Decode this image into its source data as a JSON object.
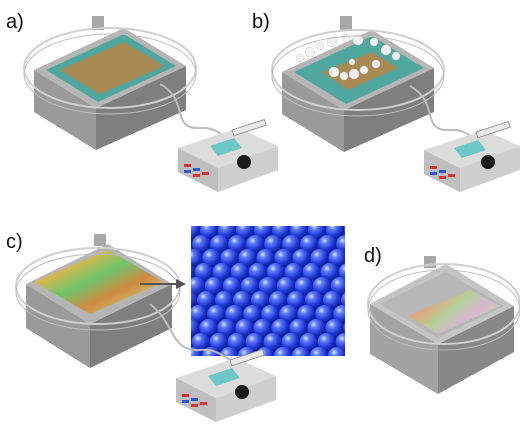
{
  "panels": [
    {
      "id": "a",
      "label": "a)"
    },
    {
      "id": "b",
      "label": "b)"
    },
    {
      "id": "c",
      "label": "c)"
    },
    {
      "id": "d",
      "label": "d)"
    }
  ],
  "colors": {
    "trough_top": "#b4b4b4",
    "trough_left": "#9a9a9a",
    "trough_right": "#7f7f7f",
    "water": "#4fa7a0",
    "film": "#a88a52",
    "rail": "#d0d0d0",
    "pump_body": "#d9d9d9",
    "pump_screen": "#6ec7c7",
    "button_red": "#e03030",
    "button_blue": "#2f55d8",
    "knob": "#1a1a1a",
    "sphere": "#1f3fe0"
  }
}
